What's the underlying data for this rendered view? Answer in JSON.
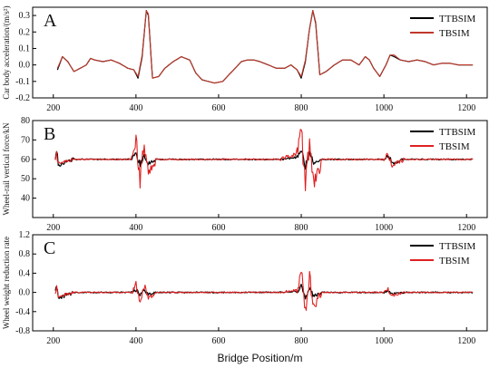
{
  "chart_data": [
    {
      "type": "line",
      "panel_letter": "A",
      "title": "",
      "xlabel": "",
      "ylabel": "Car body acceleration/(m/s²)",
      "xlim": [
        150,
        1250
      ],
      "ylim": [
        -0.2,
        0.35
      ],
      "x_ticks": [
        200,
        400,
        600,
        800,
        1000,
        1200
      ],
      "x_tick_labels": [
        "200",
        "400",
        "600",
        "800",
        "1000",
        "1200"
      ],
      "y_ticks": [
        -0.2,
        -0.1,
        0.0,
        0.1,
        0.2,
        0.3
      ],
      "y_tick_labels": [
        "-0.2",
        "-0.1",
        "0.0",
        "0.1",
        "0.2",
        "0.3"
      ],
      "legend": {
        "position": "top-right",
        "entries": [
          "TTBSIM",
          "TBSIM"
        ]
      },
      "grid": false,
      "series": [
        {
          "name": "TTBSIM",
          "color": "#000000",
          "x": [
            210,
            222,
            235,
            250,
            265,
            280,
            290,
            300,
            320,
            340,
            360,
            380,
            395,
            405,
            415,
            425,
            430,
            440,
            455,
            470,
            490,
            510,
            530,
            545,
            560,
            575,
            590,
            610,
            625,
            640,
            655,
            670,
            685,
            700,
            720,
            740,
            760,
            775,
            790,
            800,
            810,
            820,
            828,
            835,
            845,
            860,
            880,
            900,
            920,
            940,
            955,
            965,
            975,
            990,
            1005,
            1015,
            1025,
            1040,
            1060,
            1080,
            1100,
            1120,
            1140,
            1160,
            1180,
            1200,
            1215
          ],
          "y": [
            -0.03,
            0.05,
            0.02,
            -0.04,
            -0.02,
            0.0,
            0.04,
            0.03,
            0.02,
            0.03,
            0.01,
            -0.02,
            -0.03,
            -0.08,
            0.05,
            0.33,
            0.3,
            -0.08,
            -0.07,
            -0.02,
            0.02,
            0.05,
            0.03,
            -0.05,
            -0.09,
            -0.1,
            -0.11,
            -0.1,
            -0.06,
            -0.02,
            0.02,
            0.03,
            0.03,
            0.02,
            0.0,
            -0.02,
            -0.02,
            0.0,
            -0.03,
            -0.08,
            0.02,
            0.22,
            0.33,
            0.25,
            -0.06,
            -0.04,
            0.0,
            0.03,
            0.03,
            0.0,
            0.05,
            0.03,
            -0.02,
            -0.07,
            0.0,
            0.06,
            0.05,
            0.03,
            0.02,
            0.03,
            0.02,
            0.0,
            0.01,
            0.01,
            0.0,
            0.0,
            0.0
          ]
        },
        {
          "name": "TBSIM",
          "color": "#c0392b",
          "x": [
            210,
            222,
            235,
            250,
            265,
            280,
            290,
            300,
            320,
            340,
            360,
            380,
            395,
            405,
            415,
            425,
            430,
            440,
            455,
            470,
            490,
            510,
            530,
            545,
            560,
            575,
            590,
            610,
            625,
            640,
            655,
            670,
            685,
            700,
            720,
            740,
            760,
            775,
            790,
            800,
            810,
            820,
            828,
            835,
            845,
            860,
            880,
            900,
            920,
            940,
            955,
            965,
            975,
            990,
            1005,
            1015,
            1025,
            1040,
            1060,
            1080,
            1100,
            1120,
            1140,
            1160,
            1180,
            1200,
            1215
          ],
          "y": [
            -0.02,
            0.05,
            0.02,
            -0.04,
            -0.02,
            0.0,
            0.04,
            0.03,
            0.02,
            0.03,
            0.01,
            -0.02,
            -0.03,
            -0.07,
            0.06,
            0.33,
            0.31,
            -0.08,
            -0.07,
            -0.02,
            0.02,
            0.05,
            0.03,
            -0.05,
            -0.09,
            -0.1,
            -0.11,
            -0.1,
            -0.06,
            -0.02,
            0.02,
            0.03,
            0.03,
            0.02,
            0.0,
            -0.02,
            -0.02,
            0.0,
            -0.03,
            -0.07,
            0.03,
            0.22,
            0.33,
            0.26,
            -0.06,
            -0.04,
            0.0,
            0.03,
            0.03,
            0.0,
            0.05,
            0.03,
            -0.02,
            -0.07,
            0.0,
            0.06,
            0.06,
            0.03,
            0.02,
            0.03,
            0.02,
            0.0,
            0.01,
            0.01,
            0.0,
            0.0,
            0.0
          ]
        }
      ]
    },
    {
      "type": "line",
      "panel_letter": "B",
      "title": "",
      "xlabel": "",
      "ylabel": "Wheel-rail vertical force/kN",
      "xlim": [
        150,
        1250
      ],
      "ylim": [
        30,
        80
      ],
      "x_ticks": [
        200,
        400,
        600,
        800,
        1000,
        1200
      ],
      "x_tick_labels": [
        "200",
        "400",
        "600",
        "800",
        "1000",
        "1200"
      ],
      "y_ticks": [
        40,
        50,
        60,
        70,
        80
      ],
      "y_tick_labels": [
        "40",
        "50",
        "60",
        "70",
        "80"
      ],
      "legend": {
        "position": "top-right",
        "entries": [
          "TTBSIM",
          "TBSIM"
        ]
      },
      "grid": false,
      "series": [
        {
          "name": "TTBSIM",
          "color": "#000000",
          "x": [
            205,
            208,
            212,
            250,
            300,
            350,
            390,
            400,
            410,
            420,
            430,
            450,
            500,
            550,
            600,
            650,
            700,
            750,
            790,
            800,
            810,
            820,
            830,
            850,
            900,
            950,
            1000,
            1010,
            1020,
            1050,
            1100,
            1150,
            1200,
            1215
          ],
          "y": [
            60,
            66,
            57,
            60,
            60,
            60,
            60,
            63,
            57,
            62,
            58,
            60,
            60,
            60,
            60,
            60,
            60,
            60,
            61,
            64,
            56,
            63,
            58,
            60,
            60,
            60,
            60,
            62,
            58,
            60,
            60,
            60,
            60,
            60
          ]
        },
        {
          "name": "TBSIM",
          "color": "#e02020",
          "x": [
            205,
            208,
            212,
            250,
            300,
            350,
            390,
            400,
            410,
            420,
            430,
            450,
            500,
            550,
            600,
            650,
            700,
            750,
            790,
            800,
            810,
            820,
            830,
            850,
            900,
            950,
            1000,
            1010,
            1020,
            1050,
            1100,
            1150,
            1200,
            1215
          ],
          "y": [
            60,
            63,
            58,
            60,
            60,
            60,
            60,
            70,
            50,
            68,
            53,
            60,
            60,
            60,
            60,
            60,
            60,
            60,
            63,
            76,
            42,
            74,
            47,
            60,
            60,
            60,
            60,
            63,
            57,
            60,
            60,
            60,
            60,
            60
          ]
        }
      ]
    },
    {
      "type": "line",
      "panel_letter": "C",
      "title": "",
      "xlabel": "Bridge Position/m",
      "ylabel": "Wheel weight reduction rate",
      "xlim": [
        150,
        1250
      ],
      "ylim": [
        -0.8,
        1.2
      ],
      "x_ticks": [
        200,
        400,
        600,
        800,
        1000,
        1200
      ],
      "x_tick_labels": [
        "200",
        "400",
        "600",
        "800",
        "1000",
        "1200"
      ],
      "y_ticks": [
        -0.8,
        -0.4,
        0.0,
        0.4,
        0.8,
        1.2
      ],
      "y_tick_labels": [
        "-0.8",
        "-0.4",
        "0.0",
        "0.4",
        "0.8",
        "1.2"
      ],
      "legend": {
        "position": "top-right",
        "entries": [
          "TTBSIM",
          "TBSIM"
        ]
      },
      "grid": false,
      "series": [
        {
          "name": "TTBSIM",
          "color": "#000000",
          "x": [
            205,
            208,
            212,
            250,
            300,
            350,
            390,
            400,
            410,
            420,
            430,
            450,
            500,
            550,
            600,
            650,
            700,
            750,
            790,
            800,
            810,
            820,
            830,
            850,
            900,
            950,
            1000,
            1010,
            1020,
            1050,
            1100,
            1150,
            1200,
            1215
          ],
          "y": [
            0.0,
            0.15,
            -0.12,
            0.0,
            0.0,
            0.0,
            0.0,
            0.05,
            -0.05,
            0.05,
            -0.04,
            0.0,
            0.0,
            0.0,
            0.0,
            0.0,
            0.0,
            0.0,
            0.02,
            0.12,
            -0.1,
            0.1,
            -0.08,
            0.0,
            0.0,
            0.0,
            0.0,
            0.03,
            -0.03,
            0.0,
            0.0,
            0.0,
            0.0,
            0.0
          ]
        },
        {
          "name": "TBSIM",
          "color": "#e02020",
          "x": [
            205,
            208,
            212,
            250,
            300,
            350,
            390,
            400,
            410,
            420,
            430,
            450,
            500,
            550,
            600,
            650,
            700,
            750,
            790,
            800,
            810,
            820,
            830,
            850,
            900,
            950,
            1000,
            1010,
            1020,
            1050,
            1100,
            1150,
            1200,
            1215
          ],
          "y": [
            0.0,
            0.1,
            -0.08,
            0.0,
            0.0,
            0.0,
            0.0,
            0.15,
            -0.15,
            0.13,
            -0.12,
            0.0,
            0.0,
            0.0,
            0.0,
            0.0,
            0.0,
            0.0,
            0.05,
            0.4,
            -0.45,
            0.35,
            -0.3,
            0.0,
            0.0,
            0.0,
            0.0,
            0.06,
            -0.06,
            0.0,
            0.0,
            0.0,
            0.0,
            0.0
          ]
        }
      ]
    }
  ]
}
